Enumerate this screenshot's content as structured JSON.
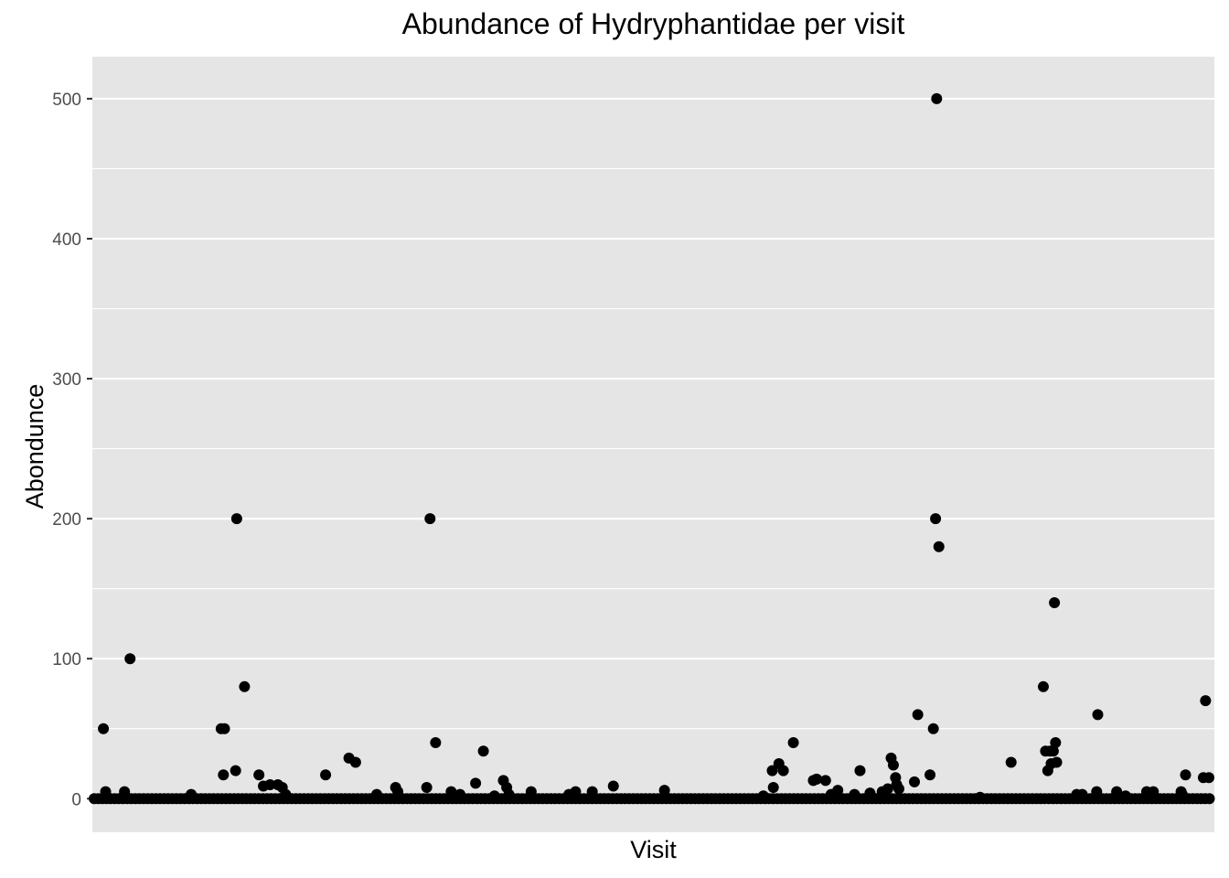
{
  "chart_data": {
    "type": "scatter",
    "title": "Abundance of Hydryphantidae per visit",
    "xlabel": "Visit",
    "ylabel": "Abondunce",
    "ylim": [
      -24,
      530
    ],
    "xlim": [
      0,
      1000
    ],
    "x_ticks_shown": false,
    "y_ticks": [
      0,
      100,
      200,
      300,
      400,
      500
    ],
    "grid": true,
    "colors": {
      "panel": "#e5e5e5",
      "grid": "#ffffff",
      "point": "#000000",
      "tick_text": "#4d4d4d"
    },
    "baseline_value": 0,
    "points": [
      [
        5,
        50
      ],
      [
        7,
        5
      ],
      [
        24,
        5
      ],
      [
        29,
        100
      ],
      [
        84,
        3
      ],
      [
        111,
        50
      ],
      [
        114,
        50
      ],
      [
        113,
        17
      ],
      [
        124,
        20
      ],
      [
        125,
        200
      ],
      [
        132,
        80
      ],
      [
        145,
        17
      ],
      [
        149,
        9
      ],
      [
        155,
        10
      ],
      [
        162,
        10
      ],
      [
        166,
        8
      ],
      [
        169,
        3
      ],
      [
        205,
        17
      ],
      [
        226,
        29
      ],
      [
        232,
        26
      ],
      [
        251,
        3
      ],
      [
        268,
        8
      ],
      [
        270,
        5
      ],
      [
        296,
        8
      ],
      [
        299,
        200
      ],
      [
        304,
        40
      ],
      [
        318,
        5
      ],
      [
        326,
        3
      ],
      [
        340,
        11
      ],
      [
        347,
        34
      ],
      [
        357,
        2
      ],
      [
        365,
        13
      ],
      [
        368,
        8
      ],
      [
        370,
        3
      ],
      [
        390,
        5
      ],
      [
        424,
        3
      ],
      [
        430,
        5
      ],
      [
        445,
        5
      ],
      [
        464,
        9
      ],
      [
        510,
        6
      ],
      [
        599,
        2
      ],
      [
        607,
        20
      ],
      [
        608,
        8
      ],
      [
        613,
        25
      ],
      [
        617,
        20
      ],
      [
        626,
        40
      ],
      [
        644,
        13
      ],
      [
        647,
        14
      ],
      [
        655,
        13
      ],
      [
        660,
        3
      ],
      [
        666,
        6
      ],
      [
        681,
        3
      ],
      [
        686,
        20
      ],
      [
        695,
        4
      ],
      [
        706,
        5
      ],
      [
        711,
        7
      ],
      [
        714,
        29
      ],
      [
        716,
        24
      ],
      [
        718,
        15
      ],
      [
        719,
        10
      ],
      [
        721,
        7
      ],
      [
        735,
        12
      ],
      [
        738,
        60
      ],
      [
        749,
        17
      ],
      [
        752,
        50
      ],
      [
        754,
        200
      ],
      [
        755,
        500
      ],
      [
        757,
        180
      ],
      [
        794,
        1
      ],
      [
        822,
        26
      ],
      [
        851,
        80
      ],
      [
        853,
        34
      ],
      [
        855,
        20
      ],
      [
        857,
        34
      ],
      [
        858,
        25
      ],
      [
        860,
        34
      ],
      [
        861,
        140
      ],
      [
        862,
        40
      ],
      [
        863,
        26
      ],
      [
        881,
        3
      ],
      [
        886,
        3
      ],
      [
        899,
        5
      ],
      [
        900,
        60
      ],
      [
        917,
        5
      ],
      [
        925,
        2
      ],
      [
        944,
        5
      ],
      [
        946,
        3
      ],
      [
        950,
        5
      ],
      [
        975,
        5
      ],
      [
        976,
        3
      ],
      [
        979,
        17
      ],
      [
        995,
        15
      ],
      [
        1000,
        15
      ],
      [
        997,
        70
      ]
    ],
    "zero_value_points_visits": "dense row at 0 across all visits"
  }
}
